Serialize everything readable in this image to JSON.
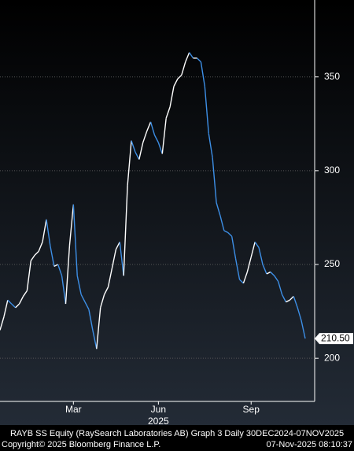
{
  "chart_data": {
    "type": "line",
    "categories": [
      null,
      null,
      null,
      null,
      null,
      null,
      null,
      null,
      null,
      null,
      null,
      null,
      null,
      null,
      null,
      null,
      null,
      null,
      null,
      "Mar",
      null,
      null,
      null,
      null,
      null,
      null,
      null,
      null,
      null,
      null,
      null,
      null,
      null,
      null,
      null,
      null,
      null,
      null,
      null,
      null,
      null,
      "Jun",
      null,
      null,
      null,
      null,
      null,
      null,
      null,
      null,
      null,
      null,
      null,
      null,
      null,
      null,
      null,
      null,
      null,
      null,
      null,
      null,
      null,
      null,
      null,
      "Sep",
      null,
      null,
      null,
      null,
      null,
      null,
      null,
      null,
      null,
      null,
      null,
      null,
      null,
      null
    ],
    "x_year_label": "2025",
    "values": [
      215,
      222,
      231,
      229,
      227,
      229,
      233,
      236,
      252,
      255,
      257,
      262,
      274,
      260,
      249,
      250,
      244,
      229,
      260,
      282,
      244,
      234,
      230,
      226,
      215,
      205,
      227,
      234,
      238,
      248,
      258,
      262,
      244,
      292,
      316,
      310,
      306,
      315,
      321,
      326,
      319,
      315,
      309,
      328,
      334,
      345,
      349,
      351,
      358,
      363,
      360,
      360,
      358,
      345,
      320,
      307,
      283,
      276,
      268,
      267,
      265,
      253,
      242,
      240,
      246,
      254,
      262,
      259,
      250,
      245,
      246,
      244,
      241,
      234,
      230,
      231,
      233,
      227,
      220,
      210.5
    ],
    "value_labels": [
      null,
      null,
      null,
      null,
      null,
      null,
      null,
      null,
      null,
      null,
      null,
      null,
      null,
      null,
      null,
      null,
      null,
      null,
      null,
      null,
      null,
      null,
      null,
      null,
      null,
      null,
      null,
      null,
      null,
      null,
      null,
      null,
      null,
      null,
      null,
      null,
      null,
      null,
      null,
      null,
      null,
      null,
      null,
      null,
      null,
      null,
      null,
      null,
      null,
      null,
      null,
      null,
      null,
      null,
      null,
      null,
      null,
      null,
      null,
      null,
      null,
      null,
      null,
      null,
      null,
      null,
      null,
      null,
      null,
      null,
      null,
      null,
      null,
      null,
      null,
      null,
      null,
      null,
      null,
      "210.50"
    ],
    "up_color": "#ffffff",
    "down_color": "#3d8fe6",
    "ylim": [
      177,
      391
    ],
    "yticks": [
      200,
      250,
      300,
      350
    ],
    "grid": true,
    "footer": {
      "title": "RAYB SS Equity (RaySearch Laboratories AB) Graph 3 Daily 30DEC2024-07NOV2025",
      "copyright": "Copyright© 2025 Bloomberg Finance L.P.",
      "timestamp": "07-Nov-2025 08:10:37"
    }
  }
}
